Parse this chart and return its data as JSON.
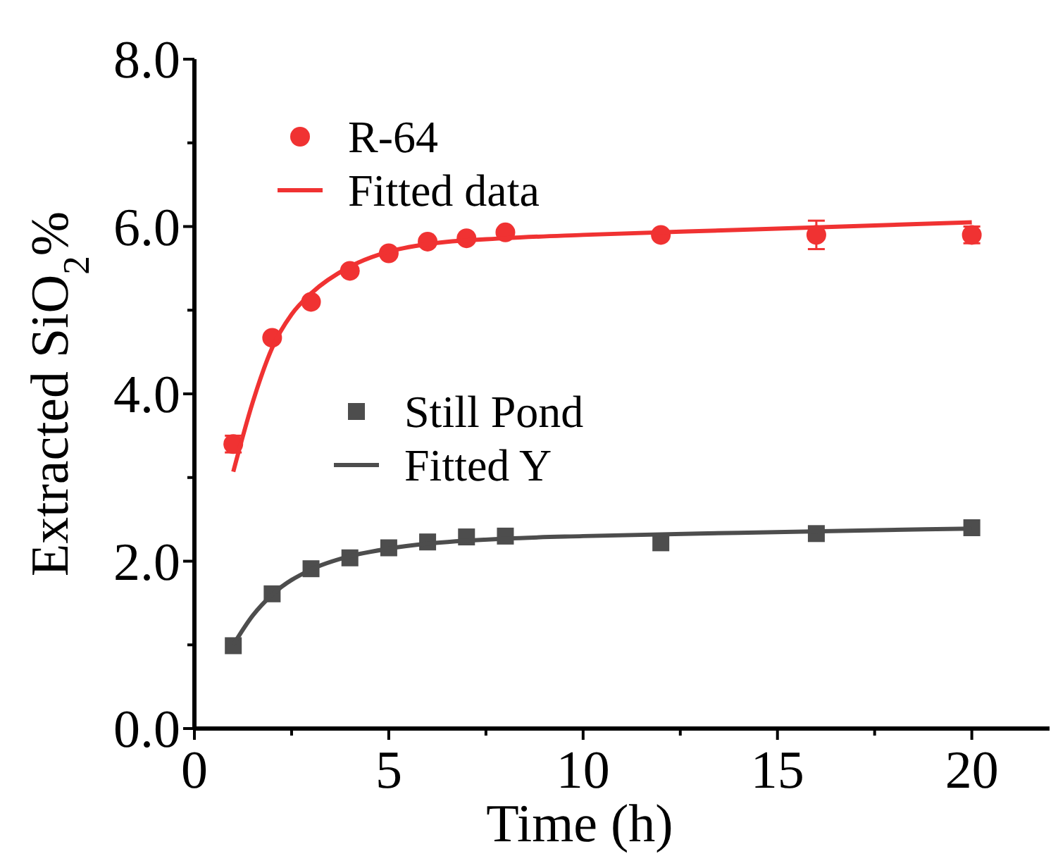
{
  "chart_data": {
    "type": "scatter",
    "xlabel": "Time (h)",
    "ylabel": "Extracted SiO$_{2}$%",
    "xlim": [
      0,
      22
    ],
    "xticks": [
      0,
      {
        "value": 2.5,
        "label": null
      },
      5,
      {
        "value": 7.5,
        "label": null
      },
      10,
      {
        "value": 12.5,
        "label": null
      },
      15,
      {
        "value": 17.5,
        "label": null
      },
      20
    ],
    "ylim": [
      0,
      8
    ],
    "yticks": [
      {
        "value": 0,
        "label": "0.0"
      },
      {
        "value": 1,
        "label": null
      },
      {
        "value": 2,
        "label": "2.0"
      },
      {
        "value": 3,
        "label": null
      },
      {
        "value": 4,
        "label": "4.0"
      },
      {
        "value": 5,
        "label": null
      },
      {
        "value": 6,
        "label": "6.0"
      },
      {
        "value": 7,
        "label": null
      },
      {
        "value": 8,
        "label": "8.0"
      }
    ],
    "grid": false,
    "legend": "top left",
    "series": [
      {
        "name": "R-64",
        "marker": "circle",
        "color": "#f03232",
        "x": [
          1,
          2,
          3,
          4,
          5,
          6,
          7,
          8,
          12,
          16,
          20
        ],
        "values": [
          3.4,
          4.67,
          5.1,
          5.47,
          5.68,
          5.82,
          5.86,
          5.93,
          5.9,
          5.9,
          5.9
        ],
        "errors": [
          0.1,
          null,
          null,
          null,
          null,
          null,
          null,
          null,
          null,
          0.17,
          0.1
        ]
      },
      {
        "name": "Fitted data",
        "type": "line",
        "line_style": "solid",
        "color": "#f03232",
        "x": [
          1,
          1.5,
          2,
          2.5,
          3,
          4,
          5,
          6,
          8,
          10,
          14,
          20
        ],
        "values": [
          3.07,
          3.9,
          4.55,
          4.95,
          5.2,
          5.52,
          5.7,
          5.79,
          5.86,
          5.9,
          5.96,
          6.05
        ]
      },
      {
        "name": "Still Pond",
        "marker": "square",
        "color": "#4d4d4d",
        "x": [
          1,
          2,
          3,
          4,
          5,
          6,
          7,
          8,
          12,
          16,
          20
        ],
        "values": [
          0.99,
          1.61,
          1.91,
          2.04,
          2.16,
          2.23,
          2.29,
          2.3,
          2.22,
          2.33,
          2.4
        ]
      },
      {
        "name": "Fitted Y",
        "type": "line",
        "line_style": "solid",
        "color": "#4d4d4d",
        "x": [
          1,
          1.5,
          2,
          3,
          4,
          5,
          6,
          8,
          10,
          14,
          20
        ],
        "values": [
          1.0,
          1.35,
          1.6,
          1.9,
          2.06,
          2.15,
          2.21,
          2.27,
          2.3,
          2.34,
          2.39
        ]
      }
    ]
  }
}
